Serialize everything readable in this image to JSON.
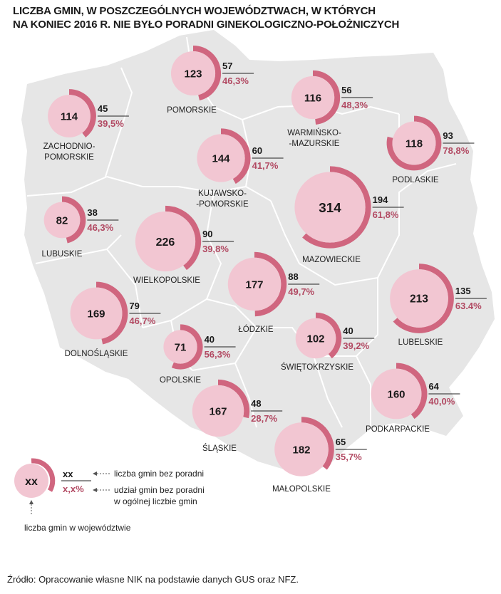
{
  "title": {
    "line1": "LICZBA GMIN, W POSZCZEGÓLNYCH WOJEWÓDZTWACH, W KTÓRYCH",
    "line2": "NA KONIEC 2016 R. NIE BYŁO PORADNI GINEKOLOGICZNO-POŁOŻNICZYCH"
  },
  "colors": {
    "map_fill": "#e6e6e6",
    "map_border": "#ffffff",
    "bubble_fill": "#f2c6d2",
    "arc": "#d0667f",
    "percent_text": "#b24a63"
  },
  "chart_data": {
    "type": "bubble-map",
    "fields": {
      "total": "liczba gmin w województwie",
      "without": "liczba gmin bez poradni",
      "share": "udział gmin bez poradni w ogólnej liczbie gmin"
    },
    "regions": [
      {
        "name": [
          "ZACHODNIO-",
          "POMORSKIE"
        ],
        "total": 114,
        "without": 45,
        "share": "39,5%",
        "share_value": 39.5
      },
      {
        "name": [
          "POMORSKIE"
        ],
        "total": 123,
        "without": 57,
        "share": "46,3%",
        "share_value": 46.3
      },
      {
        "name": [
          "WARMIŃSKO-",
          "-MAZURSKIE"
        ],
        "total": 116,
        "without": 56,
        "share": "48,3%",
        "share_value": 48.3
      },
      {
        "name": [
          "PODLASKIE"
        ],
        "total": 118,
        "without": 93,
        "share": "78,8%",
        "share_value": 78.8
      },
      {
        "name": [
          "KUJAWSKO-",
          "-POMORSKIE"
        ],
        "total": 144,
        "without": 60,
        "share": "41,7%",
        "share_value": 41.7
      },
      {
        "name": [
          "LUBUSKIE"
        ],
        "total": 82,
        "without": 38,
        "share": "46,3%",
        "share_value": 46.3
      },
      {
        "name": [
          "WIELKOPOLSKIE"
        ],
        "total": 226,
        "without": 90,
        "share": "39,8%",
        "share_value": 39.8
      },
      {
        "name": [
          "MAZOWIECKIE"
        ],
        "total": 314,
        "without": 194,
        "share": "61,8%",
        "share_value": 61.8
      },
      {
        "name": [
          "ŁÓDZKIE"
        ],
        "total": 177,
        "without": 88,
        "share": "49,7%",
        "share_value": 49.7
      },
      {
        "name": [
          "LUBELSKIE"
        ],
        "total": 213,
        "without": 135,
        "share": "63.4%",
        "share_value": 63.4
      },
      {
        "name": [
          "DOLNOŚLĄSKIE"
        ],
        "total": 169,
        "without": 79,
        "share": "46,7%",
        "share_value": 46.7
      },
      {
        "name": [
          "OPOLSKIE"
        ],
        "total": 71,
        "without": 40,
        "share": "56,3%",
        "share_value": 56.3
      },
      {
        "name": [
          "ŚWIĘTOKRZYSKIE"
        ],
        "total": 102,
        "without": 40,
        "share": "39,2%",
        "share_value": 39.2
      },
      {
        "name": [
          "ŚLĄSKIE"
        ],
        "total": 167,
        "without": 48,
        "share": "28,7%",
        "share_value": 28.7
      },
      {
        "name": [
          "PODKARPACKIE"
        ],
        "total": 160,
        "without": 64,
        "share": "40,0%",
        "share_value": 40.0
      },
      {
        "name": [
          "MAŁOPOLSKIE"
        ],
        "total": 182,
        "without": 65,
        "share": "35,7%",
        "share_value": 35.7
      }
    ]
  },
  "legend": {
    "total_symbol": "xx",
    "without_symbol": "xx",
    "share_symbol": "x,x%",
    "without_label": "liczba gmin bez poradni",
    "share_label_1": "udział gmin bez poradni",
    "share_label_2": "w ogólnej liczbie gmin",
    "total_label": "liczba gmin w województwie"
  },
  "source": "Źródło: Opracowanie własne NIK na podstawie danych GUS oraz NFZ."
}
